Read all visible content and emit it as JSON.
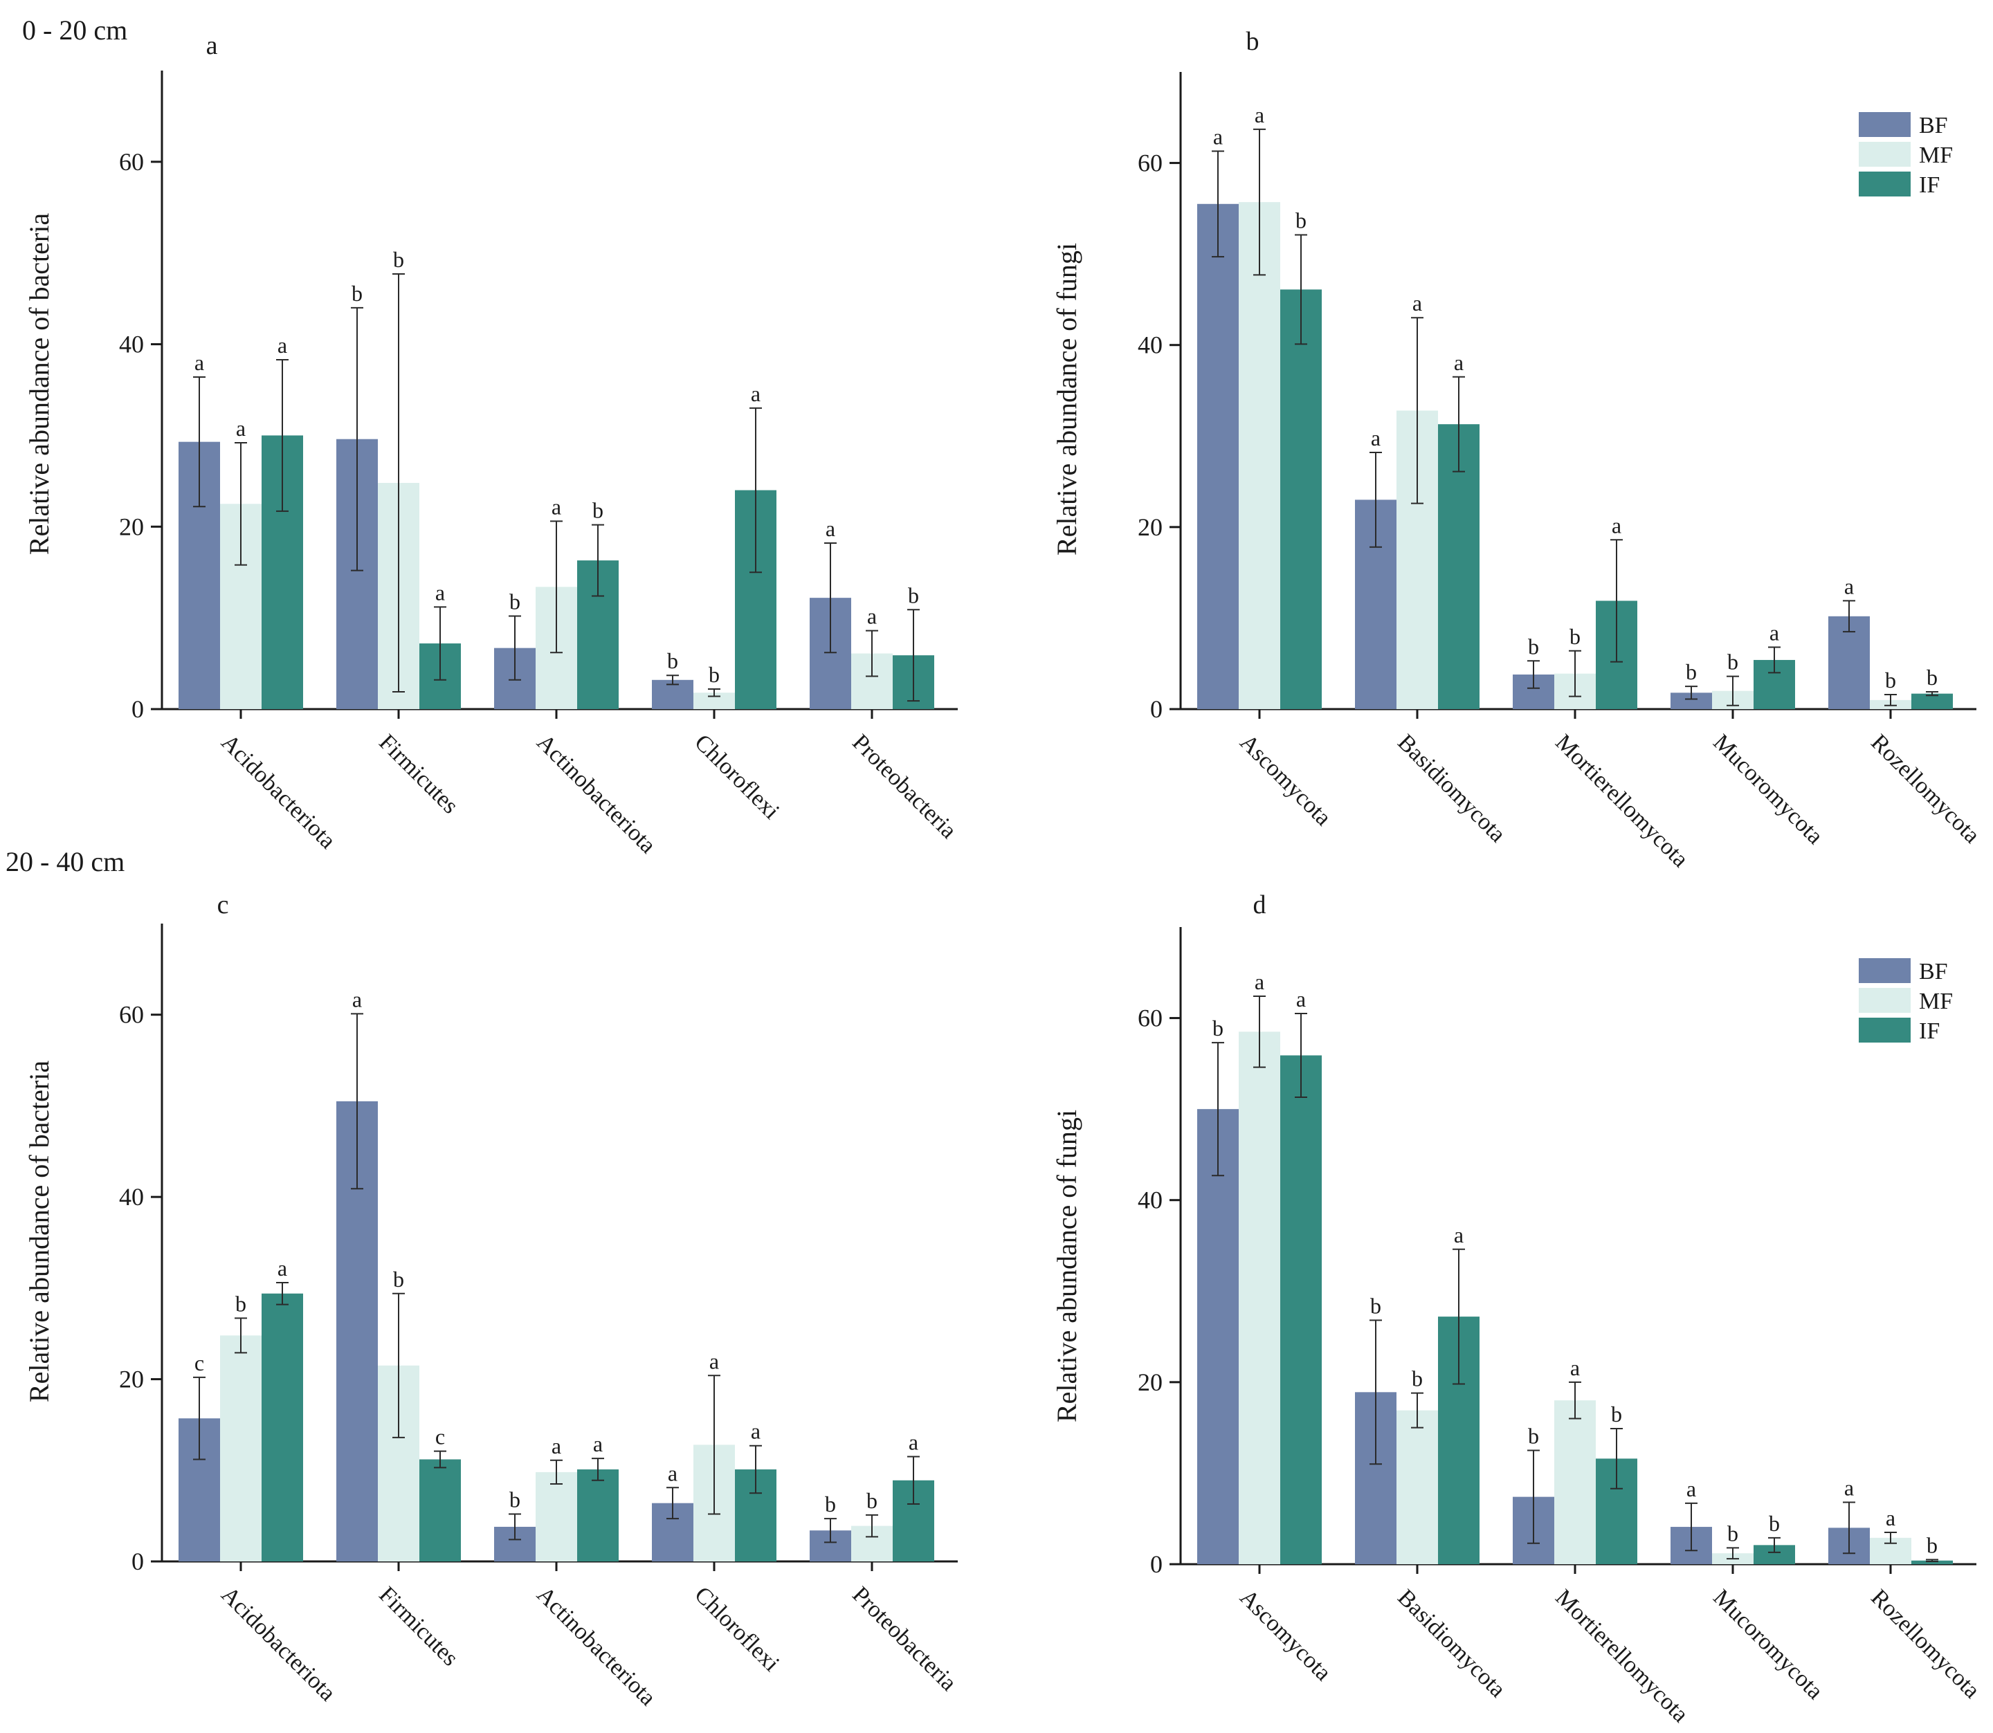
{
  "depth_labels": {
    "top": "0 - 20 cm",
    "bottom": "20 - 40 cm"
  },
  "colors": {
    "BF": "#6e82aa",
    "MF": "#dbeeeb",
    "IF": "#358a80"
  },
  "chart_data": [
    {
      "id": "a",
      "type": "bar",
      "panel_label": "a",
      "ylabel": "Relative abundance of bacteria",
      "ylim": [
        0,
        70
      ],
      "yticks": [
        0,
        20,
        40,
        60
      ],
      "legend": null,
      "categories": [
        "Acidobacteriota",
        "Firmicutes",
        "Actinobacteriota",
        "Chloroflexi",
        "Proteobacteria"
      ],
      "series": [
        {
          "name": "BF",
          "values": [
            29.3,
            29.6,
            6.7,
            3.2,
            12.2
          ],
          "errors": [
            7.1,
            14.4,
            3.5,
            0.5,
            6.0
          ],
          "letters": [
            "a",
            "b",
            "b",
            "b",
            "a"
          ]
        },
        {
          "name": "MF",
          "values": [
            22.5,
            24.8,
            13.4,
            1.8,
            6.1
          ],
          "errors": [
            6.7,
            22.9,
            7.2,
            0.4,
            2.5
          ],
          "letters": [
            "a",
            "b",
            "a",
            "b",
            "a"
          ]
        },
        {
          "name": "IF",
          "values": [
            30.0,
            7.2,
            16.3,
            24.0,
            5.9
          ],
          "errors": [
            8.3,
            4.0,
            3.9,
            9.0,
            5.0
          ],
          "letters": [
            "a",
            "a",
            "b",
            "a",
            "b"
          ]
        }
      ]
    },
    {
      "id": "b",
      "type": "bar",
      "panel_label": "b",
      "ylabel": "Relative abundance of fungi",
      "ylim": [
        0,
        70
      ],
      "yticks": [
        0,
        20,
        40,
        60
      ],
      "legend": [
        "BF",
        "MF",
        "IF"
      ],
      "categories": [
        "Ascomycota",
        "Basidiomycota",
        "Mortierellomycota",
        "Mucoromycota",
        "Rozellomycota"
      ],
      "series": [
        {
          "name": "BF",
          "values": [
            55.5,
            23.0,
            3.8,
            1.8,
            10.2
          ],
          "errors": [
            5.8,
            5.2,
            1.5,
            0.7,
            1.7
          ],
          "letters": [
            "a",
            "a",
            "b",
            "b",
            "a"
          ]
        },
        {
          "name": "MF",
          "values": [
            55.7,
            32.8,
            3.9,
            2.0,
            1.0
          ],
          "errors": [
            8.0,
            10.2,
            2.5,
            1.6,
            0.6
          ],
          "letters": [
            "a",
            "a",
            "b",
            "b",
            "b"
          ]
        },
        {
          "name": "IF",
          "values": [
            46.1,
            31.3,
            11.9,
            5.4,
            1.7
          ],
          "errors": [
            6.0,
            5.2,
            6.7,
            1.4,
            0.2
          ],
          "letters": [
            "b",
            "a",
            "a",
            "a",
            "b"
          ]
        }
      ]
    },
    {
      "id": "c",
      "type": "bar",
      "panel_label": "c",
      "ylabel": "Relative abundance of bacteria",
      "ylim": [
        0,
        70
      ],
      "yticks": [
        0,
        20,
        40,
        60
      ],
      "legend": null,
      "categories": [
        "Acidobacteriota",
        "Firmicutes",
        "Actinobacteriota",
        "Chloroflexi",
        "Proteobacteria"
      ],
      "series": [
        {
          "name": "BF",
          "values": [
            15.7,
            50.5,
            3.8,
            6.4,
            3.4
          ],
          "errors": [
            4.5,
            9.6,
            1.4,
            1.7,
            1.3
          ],
          "letters": [
            "c",
            "a",
            "b",
            "a",
            "b"
          ]
        },
        {
          "name": "MF",
          "values": [
            24.8,
            21.5,
            9.8,
            12.8,
            3.9
          ],
          "errors": [
            1.9,
            7.9,
            1.3,
            7.6,
            1.2
          ],
          "letters": [
            "b",
            "b",
            "a",
            "a",
            "b"
          ]
        },
        {
          "name": "IF",
          "values": [
            29.4,
            11.2,
            10.1,
            10.1,
            8.9
          ],
          "errors": [
            1.2,
            0.9,
            1.2,
            2.6,
            2.6
          ],
          "letters": [
            "a",
            "c",
            "a",
            "a",
            "a"
          ]
        }
      ]
    },
    {
      "id": "d",
      "type": "bar",
      "panel_label": "d",
      "ylabel": "Relative abundance of fungi",
      "ylim": [
        0,
        70
      ],
      "yticks": [
        0,
        20,
        40,
        60
      ],
      "legend": [
        "BF",
        "MF",
        "IF"
      ],
      "categories": [
        "Ascomycota",
        "Basidiomycota",
        "Mortierellomycota",
        "Mucoromycota",
        "Rozellomycota"
      ],
      "series": [
        {
          "name": "BF",
          "values": [
            50.0,
            18.9,
            7.4,
            4.1,
            4.0
          ],
          "errors": [
            7.3,
            7.9,
            5.1,
            2.6,
            2.8
          ],
          "letters": [
            "b",
            "b",
            "b",
            "a",
            "a"
          ]
        },
        {
          "name": "MF",
          "values": [
            58.5,
            16.9,
            18.0,
            1.2,
            2.9
          ],
          "errors": [
            3.9,
            1.9,
            2.0,
            0.6,
            0.6
          ],
          "letters": [
            "a",
            "b",
            "a",
            "b",
            "a"
          ]
        },
        {
          "name": "IF",
          "values": [
            55.9,
            27.2,
            11.6,
            2.1,
            0.4
          ],
          "errors": [
            4.6,
            7.4,
            3.3,
            0.8,
            0.1
          ],
          "letters": [
            "a",
            "a",
            "b",
            "b",
            "b"
          ]
        }
      ]
    }
  ]
}
